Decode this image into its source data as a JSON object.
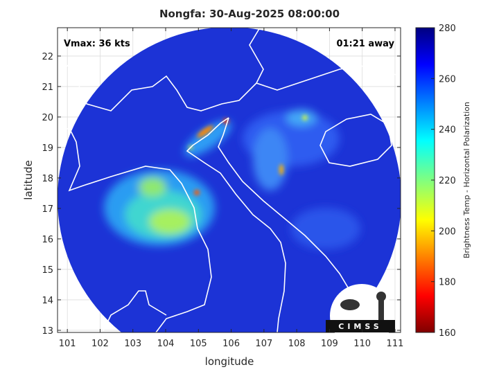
{
  "chart_data": {
    "type": "map",
    "title": "Nongfa: 30-Aug-2025 08:00:00",
    "annotations": [
      "Vmax: 36 kts",
      "01:21 away"
    ],
    "xlabel": "longitude",
    "ylabel": "latitude",
    "xlim": [
      100.7,
      111.17
    ],
    "xticks": [
      101,
      102,
      103,
      104,
      105,
      106,
      107,
      108,
      109,
      110,
      111
    ],
    "ylim": [
      12.93,
      22.93
    ],
    "yticks": [
      13,
      14,
      15,
      16,
      17,
      18,
      19,
      20,
      21,
      22
    ],
    "grid": true,
    "colorbar": {
      "label": "Brightness Temp - Horizontal Polarization",
      "lim": [
        160,
        280
      ],
      "ticks": [
        160,
        180,
        200,
        220,
        240,
        260,
        280
      ]
    },
    "logo": "CIMSS"
  }
}
